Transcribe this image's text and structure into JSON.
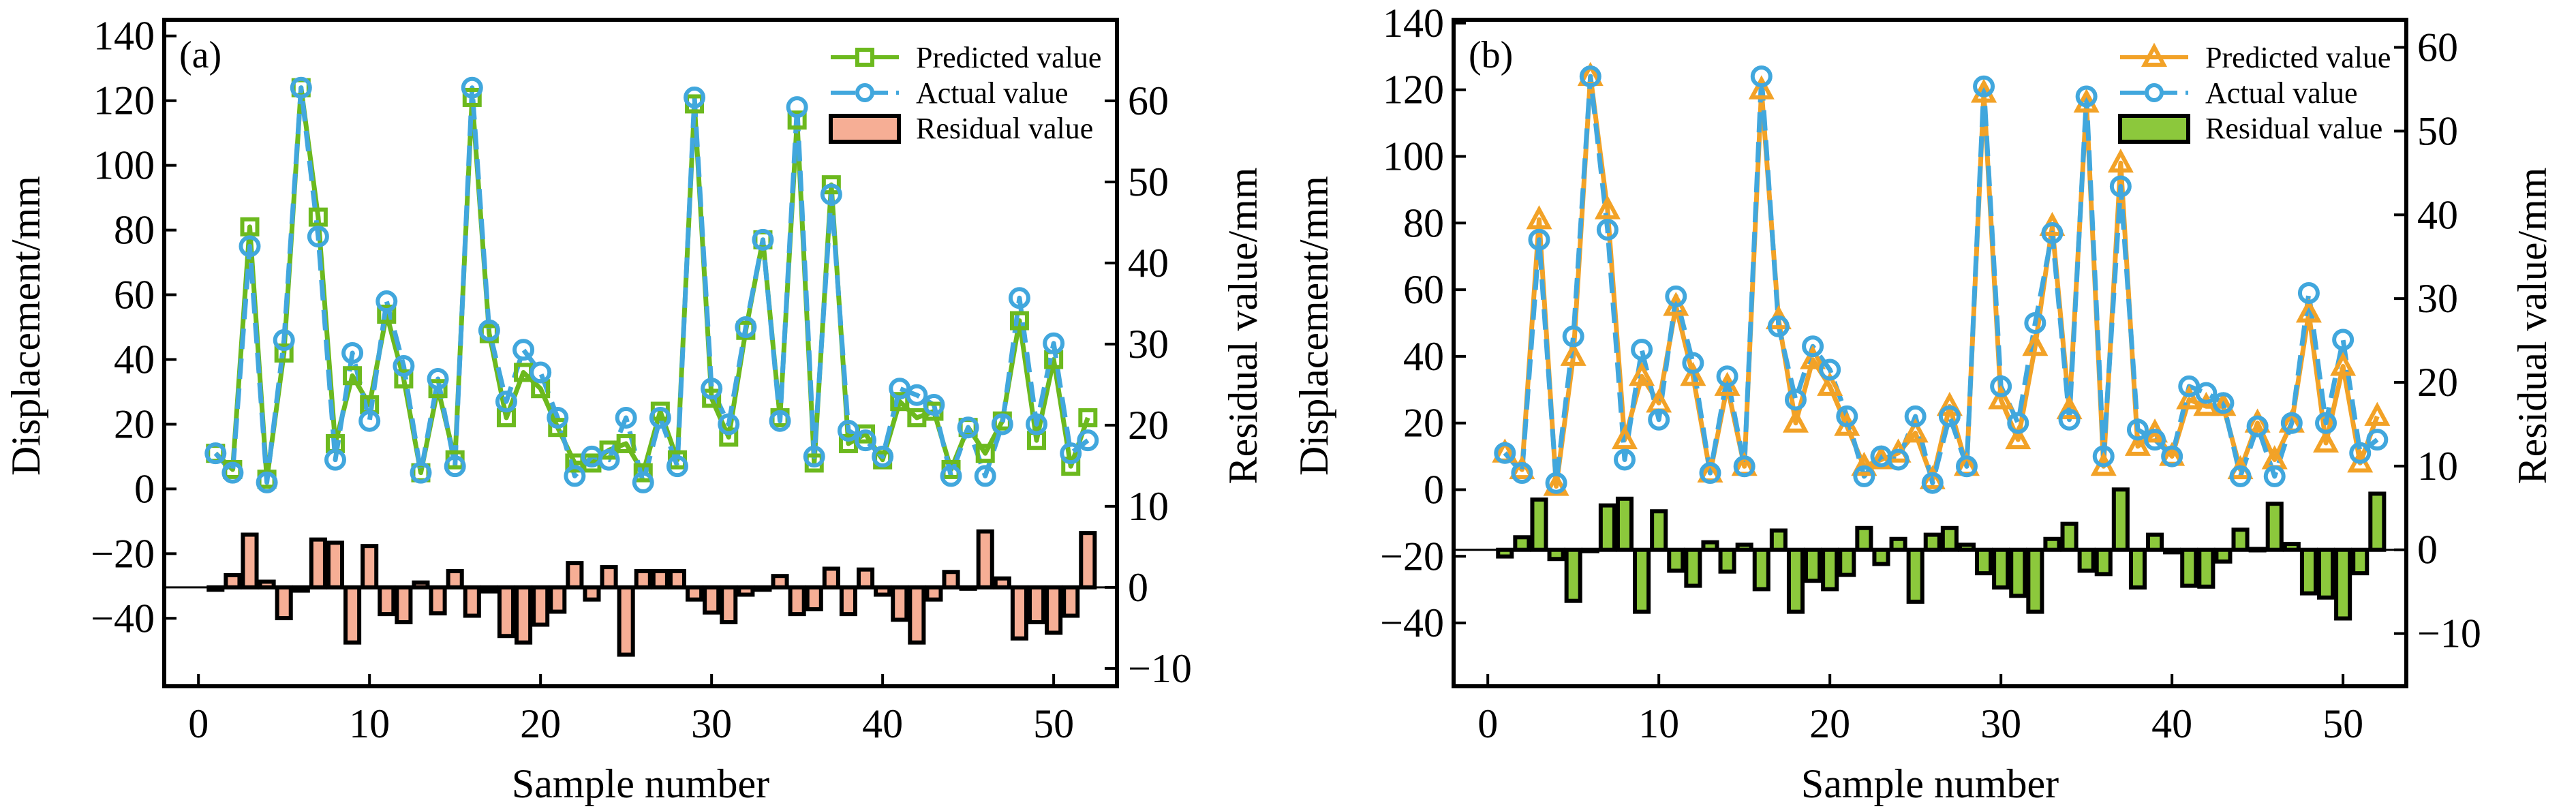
{
  "chart_data": [
    {
      "type": "line+bar",
      "panel_label": "(a)",
      "xlabel": "Sample number",
      "ylabel_left": "Displacement/mm",
      "ylabel_right": "Residual value/mm",
      "xlim": [
        -2,
        53.7
      ],
      "ylim_left": [
        -61,
        145
      ],
      "ylim_right": [
        -12.2,
        70
      ],
      "xticks": [
        0,
        10,
        20,
        30,
        40,
        50
      ],
      "yticks_left": [
        140,
        120,
        100,
        80,
        60,
        40,
        20,
        0,
        -20,
        -40
      ],
      "yticks_right": [
        60,
        50,
        40,
        30,
        20,
        10,
        0,
        -10
      ],
      "legend_position": "top-right",
      "colors": {
        "predicted": "#6cb91e",
        "actual": "#41a7dd",
        "residual": "#f6ae95"
      },
      "predicted_marker": "square",
      "x": [
        1,
        2,
        3,
        4,
        5,
        6,
        7,
        8,
        9,
        10,
        11,
        12,
        13,
        14,
        15,
        16,
        17,
        18,
        19,
        20,
        21,
        22,
        23,
        24,
        25,
        26,
        27,
        28,
        29,
        30,
        31,
        32,
        33,
        34,
        35,
        36,
        37,
        38,
        39,
        40,
        41,
        42,
        43,
        44,
        45,
        46,
        47,
        48,
        49,
        50,
        51,
        52
      ],
      "series": [
        {
          "name": "Predicted value",
          "kind": "line",
          "axis": "left",
          "values": [
            11,
            6,
            81,
            3,
            42,
            124,
            84,
            14,
            35,
            26,
            54,
            34,
            5,
            31,
            9,
            121,
            48,
            22,
            36,
            31,
            19,
            8,
            8,
            12,
            14,
            5,
            24,
            9,
            119,
            28,
            16,
            49,
            77,
            22,
            114,
            8,
            94,
            14,
            17,
            9,
            27,
            22,
            24,
            6,
            19,
            11,
            21,
            52,
            15,
            40,
            7,
            22
          ]
        },
        {
          "name": "Actual value",
          "kind": "line",
          "axis": "left",
          "values": [
            11,
            5,
            75,
            2,
            46,
            124,
            78,
            9,
            42,
            21,
            58,
            38,
            5,
            34,
            7,
            124,
            49,
            27,
            43,
            36,
            22,
            4,
            10,
            9,
            22,
            2,
            22,
            7,
            121,
            31,
            20,
            50,
            77,
            21,
            118,
            10,
            91,
            18,
            15,
            10,
            31,
            29,
            26,
            4,
            19,
            4,
            20,
            59,
            20,
            45,
            11,
            15
          ]
        },
        {
          "name": "Residual value",
          "kind": "bar",
          "axis": "right",
          "values": [
            -0.3,
            1.5,
            6.5,
            0.7,
            -3.8,
            -0.4,
            5.9,
            5.5,
            -6.8,
            5.1,
            -3.3,
            -4.3,
            0.6,
            -3.2,
            2.0,
            -3.5,
            -0.5,
            -6.0,
            -6.8,
            -4.6,
            -3.0,
            3.0,
            -1.5,
            2.5,
            -8.3,
            2.0,
            2.0,
            2.0,
            -1.5,
            -3.1,
            -4.3,
            -0.9,
            -0.3,
            1.4,
            -3.3,
            -2.7,
            2.3,
            -3.3,
            2.2,
            -0.9,
            -4.0,
            -6.8,
            -1.5,
            1.9,
            -0.1,
            6.9,
            1.1,
            -6.3,
            -4.3,
            -5.6,
            -3.5,
            6.7
          ]
        }
      ]
    },
    {
      "type": "line+bar",
      "panel_label": "(b)",
      "xlabel": "Sample number",
      "ylabel_left": "Displacement/mm",
      "ylabel_right": "Residual value/mm",
      "xlim": [
        -2,
        53.7
      ],
      "ylim_left": [
        -59,
        141
      ],
      "ylim_right": [
        -16.3,
        63.3
      ],
      "xticks": [
        0,
        10,
        20,
        30,
        40,
        50
      ],
      "yticks_left": [
        140,
        120,
        100,
        80,
        60,
        40,
        20,
        0,
        -20,
        -40
      ],
      "yticks_right": [
        60,
        50,
        40,
        30,
        20,
        10,
        0,
        -10
      ],
      "legend_position": "top-right",
      "colors": {
        "predicted": "#f2a227",
        "actual": "#41a7dd",
        "residual": "#8cc83c"
      },
      "predicted_marker": "triangle",
      "x": [
        1,
        2,
        3,
        4,
        5,
        6,
        7,
        8,
        9,
        10,
        11,
        12,
        13,
        14,
        15,
        16,
        17,
        18,
        19,
        20,
        21,
        22,
        23,
        24,
        25,
        26,
        27,
        28,
        29,
        30,
        31,
        32,
        33,
        34,
        35,
        36,
        37,
        38,
        39,
        40,
        41,
        42,
        43,
        44,
        45,
        46,
        47,
        48,
        49,
        50,
        51,
        52
      ],
      "series": [
        {
          "name": "Predicted value",
          "kind": "line",
          "axis": "left",
          "values": [
            11,
            6,
            81,
            1,
            40,
            124,
            84,
            15,
            34,
            26,
            55,
            34,
            5,
            31,
            7,
            120,
            51,
            20,
            39,
            31,
            19,
            7,
            9,
            11,
            17,
            3,
            25,
            7,
            119,
            27,
            15,
            43,
            79,
            24,
            116,
            7,
            98,
            13,
            17,
            10,
            27,
            25,
            25,
            6,
            20,
            9,
            20,
            53,
            14,
            37,
            8,
            22
          ]
        },
        {
          "name": "Actual value",
          "kind": "line",
          "axis": "left",
          "values": [
            11,
            5,
            75,
            2,
            46,
            124,
            78,
            9,
            42,
            21,
            58,
            38,
            5,
            34,
            7,
            124,
            49,
            27,
            43,
            36,
            22,
            4,
            10,
            9,
            22,
            2,
            22,
            7,
            121,
            31,
            20,
            50,
            77,
            21,
            118,
            10,
            91,
            18,
            15,
            10,
            31,
            29,
            26,
            4,
            19,
            4,
            20,
            59,
            20,
            45,
            11,
            15
          ]
        },
        {
          "name": "Residual value",
          "kind": "bar",
          "axis": "right",
          "values": [
            -0.8,
            1.5,
            6.0,
            -1.1,
            -6.1,
            0.0,
            5.3,
            6.1,
            -7.4,
            4.6,
            -2.5,
            -4.3,
            0.9,
            -2.6,
            0.6,
            -4.7,
            2.3,
            -7.4,
            -3.7,
            -4.7,
            -3.0,
            2.6,
            -1.7,
            1.3,
            -6.2,
            1.8,
            2.6,
            0.6,
            -2.8,
            -4.5,
            -5.5,
            -7.4,
            1.3,
            3.1,
            -2.5,
            -2.9,
            7.2,
            -4.5,
            1.8,
            -0.3,
            -4.3,
            -4.4,
            -1.4,
            2.4,
            0.1,
            5.5,
            0.7,
            -5.2,
            -5.7,
            -8.2,
            -2.8,
            6.7
          ]
        }
      ]
    }
  ]
}
